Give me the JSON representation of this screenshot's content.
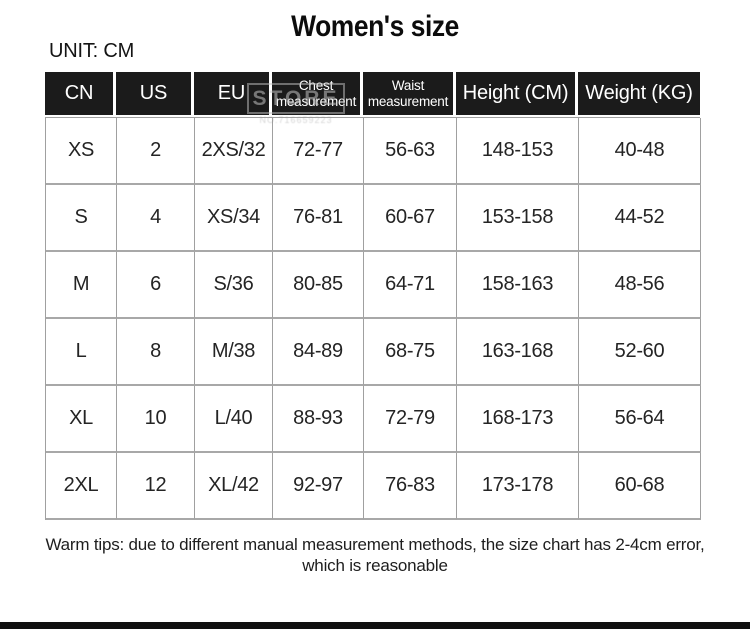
{
  "page": {
    "title": "Women's size",
    "unit_label": "UNIT: CM",
    "footnote_line1": "Warm tips: due to different manual measurement methods, the size chart has 2-4cm error,",
    "footnote_line2": "which is reasonable"
  },
  "watermark": {
    "text": "STORE",
    "subtext": "NO.716659223"
  },
  "chart_data": {
    "type": "table",
    "title": "Women's size",
    "unit": "CM",
    "columns": [
      "CN",
      "US",
      "EU",
      "Chest measurement",
      "Waist measurement",
      "Height (CM)",
      "Weight (KG)"
    ],
    "rows": [
      [
        "XS",
        "2",
        "2XS/32",
        "72-77",
        "56-63",
        "148-153",
        "40-48"
      ],
      [
        "S",
        "4",
        "XS/34",
        "76-81",
        "60-67",
        "153-158",
        "44-52"
      ],
      [
        "M",
        "6",
        "S/36",
        "80-85",
        "64-71",
        "158-163",
        "48-56"
      ],
      [
        "L",
        "8",
        "M/38",
        "84-89",
        "68-75",
        "163-168",
        "52-60"
      ],
      [
        "XL",
        "10",
        "L/40",
        "88-93",
        "72-79",
        "168-173",
        "56-64"
      ],
      [
        "2XL",
        "12",
        "XL/42",
        "92-97",
        "76-83",
        "173-178",
        "60-68"
      ]
    ]
  },
  "colors": {
    "header_bg": "#1b1b1b",
    "header_text": "#ffffff",
    "body_border": "#a0a0a0",
    "text": "#242424",
    "bottom_bar": "#101010"
  }
}
